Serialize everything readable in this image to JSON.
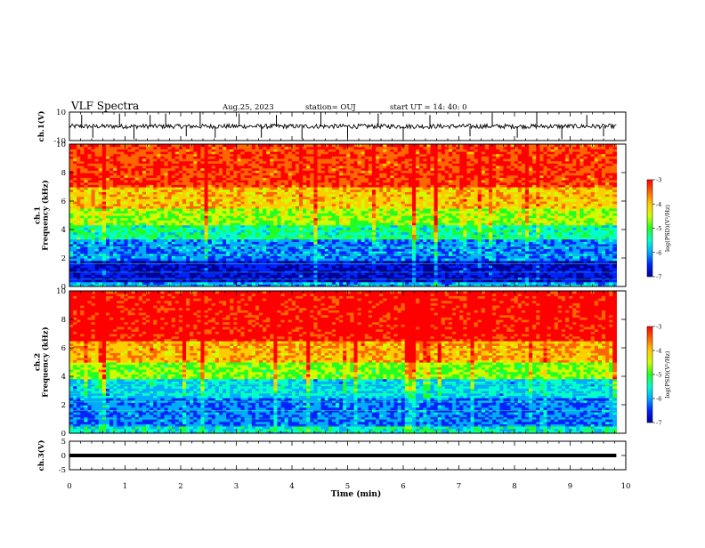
{
  "header": {
    "title": "VLF Spectra",
    "date": "Aug.25, 2023",
    "station": "station= OUJ",
    "start": "start  UT  =   14: 40: 0"
  },
  "chart_data": [
    {
      "type": "line",
      "ylabel": "ch.1(V)",
      "ylim": [
        -10,
        10
      ],
      "y_ticks": [
        "10",
        "-10"
      ],
      "baseline": 0,
      "spikes": [
        {
          "t": 0.22,
          "v": 8
        },
        {
          "t": 0.42,
          "v": -8
        },
        {
          "t": 0.9,
          "v": 9
        },
        {
          "t": 1.16,
          "v": -9
        },
        {
          "t": 1.45,
          "v": 8
        },
        {
          "t": 1.73,
          "v": 9
        },
        {
          "t": 2.1,
          "v": -7
        },
        {
          "t": 2.35,
          "v": 10
        },
        {
          "t": 2.62,
          "v": -8
        },
        {
          "t": 3.05,
          "v": 9
        },
        {
          "t": 3.45,
          "v": -8
        },
        {
          "t": 3.72,
          "v": 8
        },
        {
          "t": 4.18,
          "v": -9
        },
        {
          "t": 4.52,
          "v": 10
        },
        {
          "t": 5.0,
          "v": -8
        },
        {
          "t": 5.55,
          "v": 9
        },
        {
          "t": 6.0,
          "v": -9
        },
        {
          "t": 6.48,
          "v": 8
        },
        {
          "t": 7.2,
          "v": -7
        },
        {
          "t": 7.6,
          "v": 9
        },
        {
          "t": 8.05,
          "v": -8
        },
        {
          "t": 8.4,
          "v": 10
        },
        {
          "t": 8.85,
          "v": -9
        },
        {
          "t": 9.3,
          "v": 8
        },
        {
          "t": 9.6,
          "v": -7
        }
      ]
    },
    {
      "type": "heatmap",
      "ylabel": "ch.1\nFrequency  (kHz)",
      "ylim": [
        0,
        10
      ],
      "y_ticks": [
        "0",
        "2",
        "4",
        "6",
        "8",
        "10"
      ],
      "colorbar": {
        "label": "log(PSD)(V²/Hz)",
        "range": [
          -7,
          -3
        ],
        "ticks": [
          "-3",
          "-4",
          "-5",
          "-6",
          "-7"
        ]
      },
      "bands": [
        {
          "from": 0,
          "to": 0.4,
          "level": 0.3
        },
        {
          "from": 0.4,
          "to": 1.8,
          "level": 0.1
        },
        {
          "from": 1.8,
          "to": 3.3,
          "level": 0.25
        },
        {
          "from": 3.3,
          "to": 4.3,
          "level": 0.42
        },
        {
          "from": 4.3,
          "to": 5.5,
          "level": 0.58
        },
        {
          "from": 5.5,
          "to": 7.0,
          "level": 0.72
        },
        {
          "from": 7.0,
          "to": 10,
          "level": 0.88
        }
      ]
    },
    {
      "type": "heatmap",
      "ylabel": "ch.2\nFrequency  (kHz)",
      "ylim": [
        0,
        10
      ],
      "y_ticks": [
        "0",
        "2",
        "4",
        "6",
        "8",
        "10"
      ],
      "colorbar": {
        "label": "log(PSD)(V²/Hz)",
        "range": [
          -7,
          -3
        ],
        "ticks": [
          "-3",
          "-4",
          "-5",
          "-6",
          "-7"
        ]
      },
      "bands": [
        {
          "from": 0,
          "to": 0.5,
          "level": 0.35
        },
        {
          "from": 0.5,
          "to": 2.5,
          "level": 0.2
        },
        {
          "from": 2.5,
          "to": 3.8,
          "level": 0.3
        },
        {
          "from": 3.8,
          "to": 5.0,
          "level": 0.52
        },
        {
          "from": 5.0,
          "to": 6.5,
          "level": 0.72
        },
        {
          "from": 6.5,
          "to": 10,
          "level": 0.92
        }
      ]
    },
    {
      "type": "line",
      "ylabel": "ch.3(V)",
      "ylim": [
        -5,
        5
      ],
      "y_ticks": [
        "5",
        "0",
        "-5"
      ],
      "constant_value": 0
    }
  ],
  "x_axis": {
    "label": "Time  (min)",
    "range": [
      0,
      10
    ],
    "ticks": [
      "0",
      "1",
      "2",
      "3",
      "4",
      "5",
      "6",
      "7",
      "8",
      "9",
      "10"
    ],
    "data_end": 9.83
  },
  "colors": {
    "colormap": [
      "#000099",
      "#0022ff",
      "#00aaff",
      "#00ffcc",
      "#22ff22",
      "#ccff00",
      "#ffcc00",
      "#ff6600",
      "#ff0000"
    ],
    "trace": "#000000"
  }
}
